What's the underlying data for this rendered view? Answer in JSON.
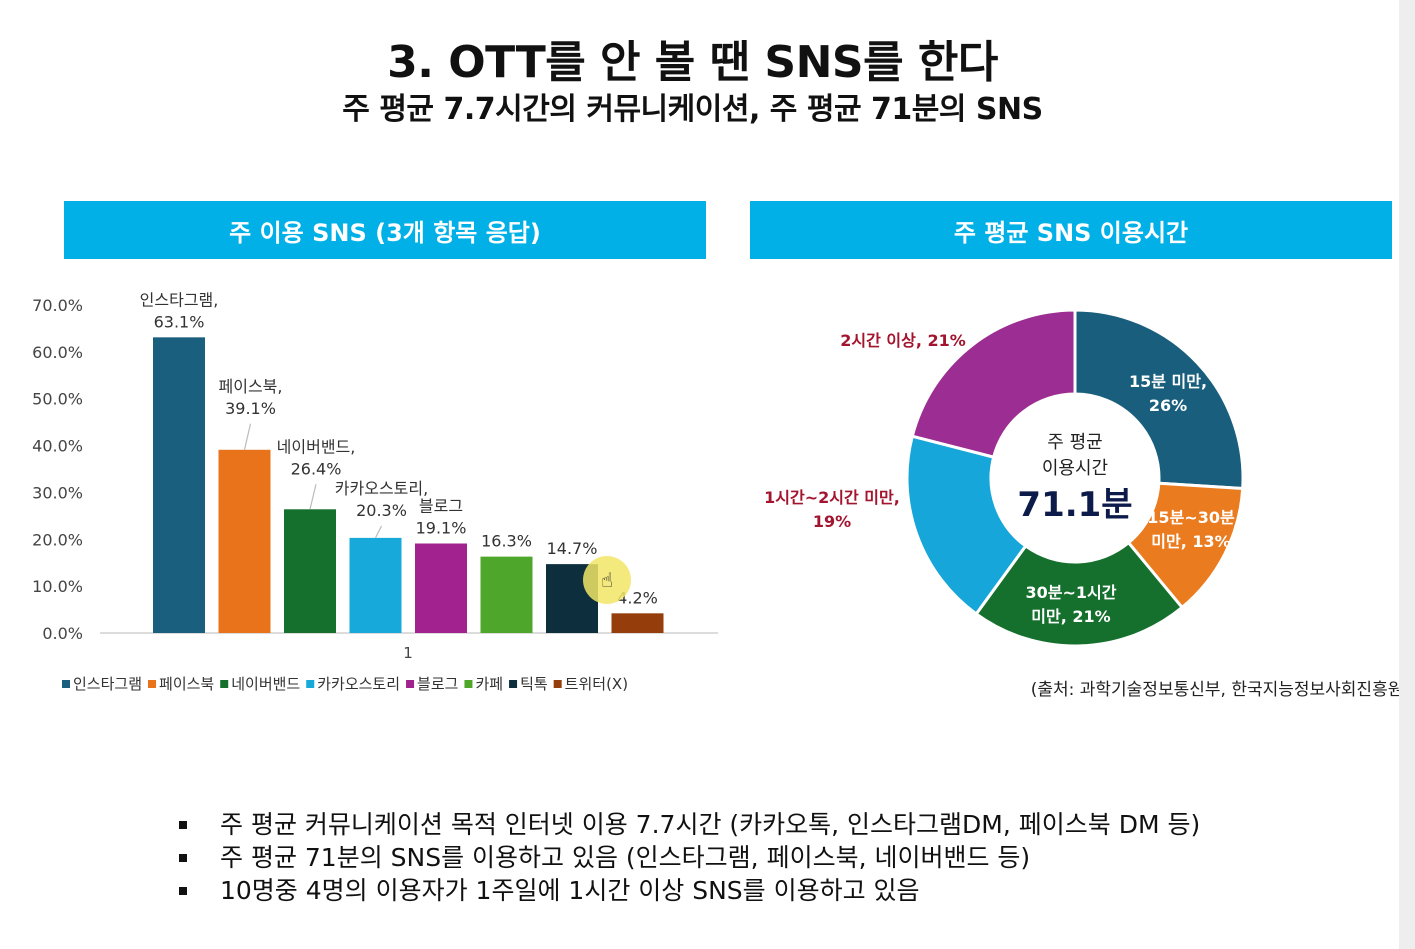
{
  "slide": {
    "title": "3. OTT를 안 볼 땐 SNS를 한다",
    "subtitle": "주 평균 7.7시간의 커뮤니케이션, 주 평균 71분의 SNS",
    "bar_panel_title": "주 이용 SNS (3개 항목 응답)",
    "pie_panel_title": "주 평균 SNS 이용시간",
    "source": "(출처: 과학기술정보통신부, 한국지능정보사회진흥원)",
    "bullets": [
      "주 평균 커뮤니케이션 목적 인터넷 이용 7.7시간 (카카오톡, 인스타그램DM, 페이스북 DM 등)",
      "주 평균 71분의 SNS를 이용하고 있음 (인스타그램, 페이스북, 네이버밴드 등)",
      "10명중 4명의 이용자가 1주일에 1시간 이상 SNS를 이용하고 있음"
    ]
  },
  "chart_data": [
    {
      "type": "bar",
      "title": "주 이용 SNS (3개 항목 응답)",
      "categories": [
        "1"
      ],
      "ylim": [
        0,
        70
      ],
      "yticks": [
        0,
        10,
        20,
        30,
        40,
        50,
        60,
        70
      ],
      "ytick_labels": [
        "0.0%",
        "10.0%",
        "20.0%",
        "30.0%",
        "40.0%",
        "50.0%",
        "60.0%",
        "70.0%"
      ],
      "grid": false,
      "legend_position": "bottom",
      "series": [
        {
          "name": "인스타그램",
          "values": [
            63.1
          ],
          "color": "#1b5f7e",
          "label_line1": "인스타그램,",
          "label_line2": "63.1%"
        },
        {
          "name": "페이스북",
          "values": [
            39.1
          ],
          "color": "#e8731b",
          "label_line1": "페이스북,",
          "label_line2": "39.1%"
        },
        {
          "name": "네이버밴드",
          "values": [
            26.4
          ],
          "color": "#16702d",
          "label_line1": "네이버밴드,",
          "label_line2": "26.4%"
        },
        {
          "name": "카카오스토리",
          "values": [
            20.3
          ],
          "color": "#18a9db",
          "label_line1": "카카오스토리,",
          "label_line2": "20.3%"
        },
        {
          "name": "블로그",
          "values": [
            19.1
          ],
          "color": "#a2228f",
          "label_line1": "블로그",
          "label_line2": "19.1%"
        },
        {
          "name": "카페",
          "values": [
            16.3
          ],
          "color": "#4ea72a",
          "label_line1": "",
          "label_line2": "16.3%"
        },
        {
          "name": "틱톡",
          "values": [
            14.7
          ],
          "color": "#0c2e3d",
          "label_line1": "",
          "label_line2": "14.7%"
        },
        {
          "name": "트위터(X)",
          "values": [
            4.2
          ],
          "color": "#953d0b",
          "label_line1": "",
          "label_line2": "4.2%"
        }
      ]
    },
    {
      "type": "pie",
      "title": "주 평균 SNS 이용시간",
      "donut": true,
      "center_label_line1": "주 평균",
      "center_label_line2": "이용시간",
      "center_value": "71.1분",
      "slices": [
        {
          "label_line1": "15분 미만,",
          "label_line2": "26%",
          "value": 26,
          "color": "#195f7d",
          "label_color": "#ffffff"
        },
        {
          "label_line1": "15분~30분",
          "label_line2": "미만, 13%",
          "value": 13,
          "color": "#ea7b1e",
          "label_color": "#ffffff"
        },
        {
          "label_line1": "30분~1시간",
          "label_line2": "미만, 21%",
          "value": 21,
          "color": "#16702d",
          "label_color": "#ffffff"
        },
        {
          "label_line1": "1시간~2시간 미만,",
          "label_line2": "19%",
          "value": 19,
          "color": "#16a6d9",
          "label_color": "#a3142f"
        },
        {
          "label_line1": "2시간 이상, 21%",
          "label_line2": "",
          "value": 21,
          "color": "#9c2d92",
          "label_color": "#a3142f"
        }
      ]
    }
  ]
}
